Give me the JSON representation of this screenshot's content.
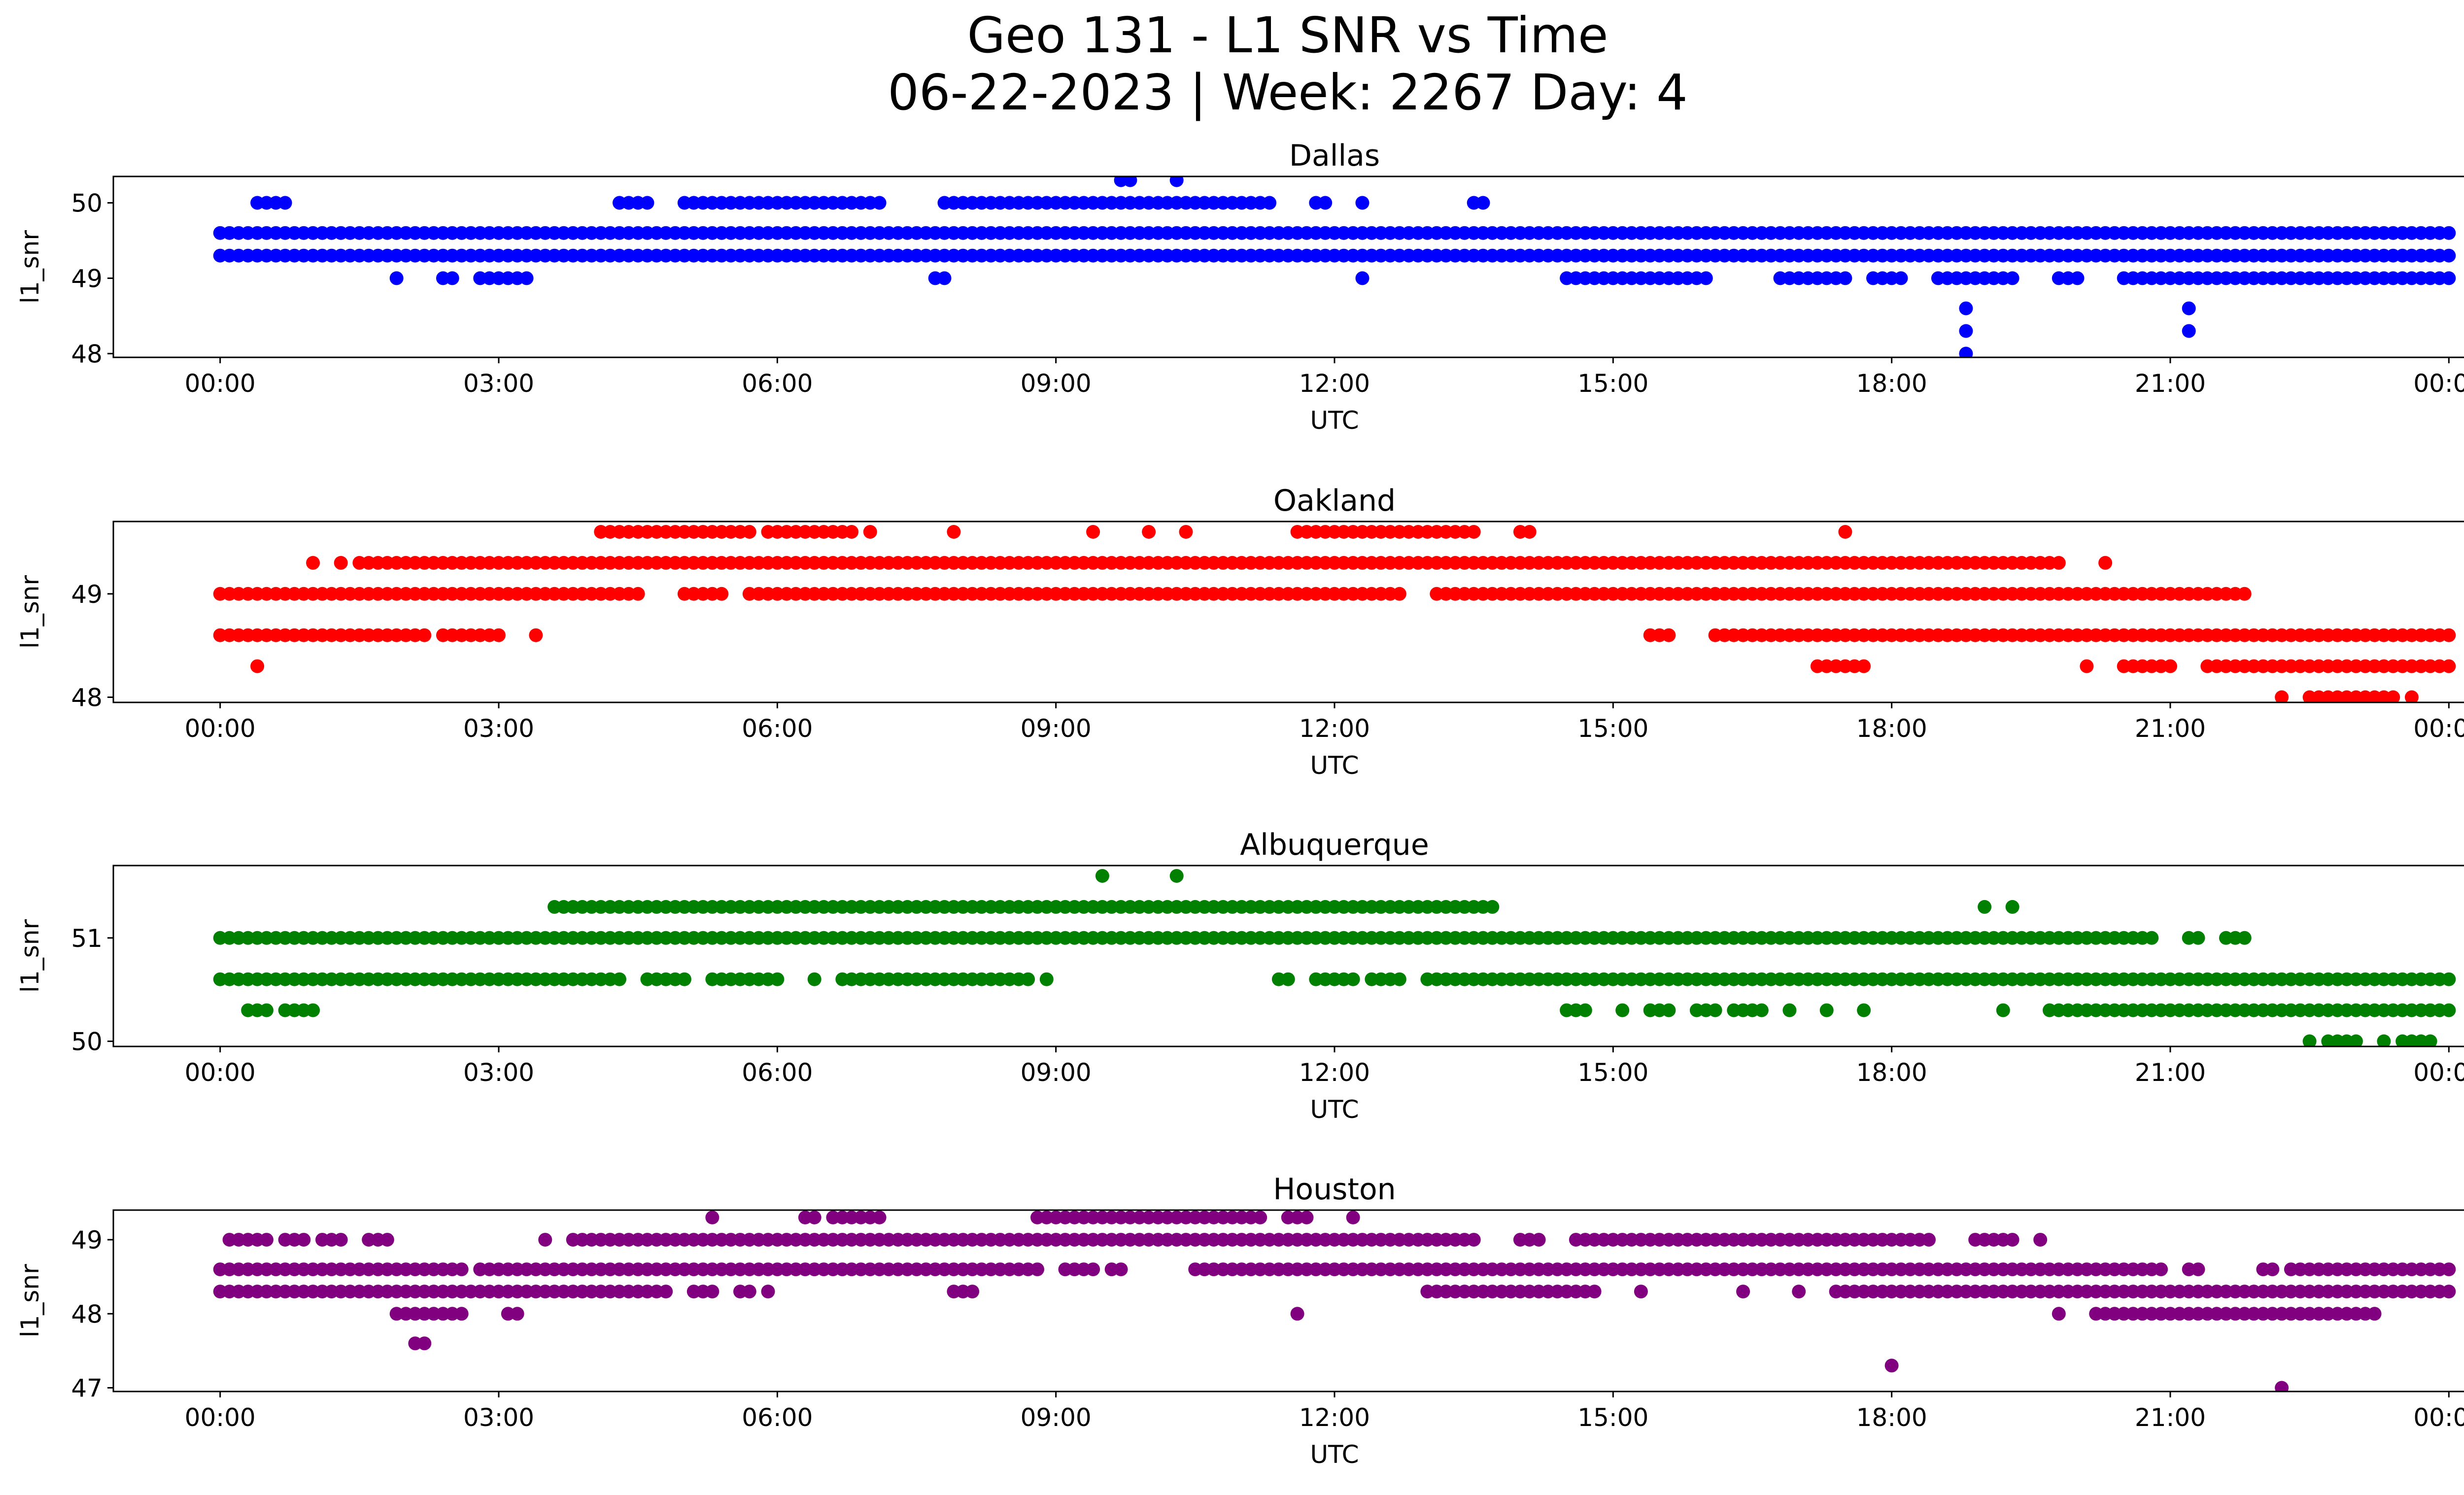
{
  "figure": {
    "title_line1": "Geo 131 - L1 SNR vs Time",
    "title_line2": "06-22-2023 | Week: 2267 Day: 4"
  },
  "chart_data": [
    {
      "type": "scatter",
      "title": "Dallas",
      "xlabel": "UTC",
      "ylabel": "l1_snr",
      "color": "#0000ff",
      "x_ticks": [
        "00:00",
        "03:00",
        "06:00",
        "09:00",
        "12:00",
        "15:00",
        "18:00",
        "21:00",
        "00:00"
      ],
      "y_ticks": [
        48,
        49,
        50
      ],
      "xlim_hours": [
        -1.15,
        25.15
      ],
      "ylim": [
        47.95,
        50.35
      ],
      "points": {
        "segments": [
          [
            49.3,
            [
              [
                0.0,
                24.0
              ]
            ]
          ],
          [
            49.6,
            [
              [
                0.0,
                24.0
              ]
            ]
          ],
          [
            50.0,
            [
              [
                0.4,
                0.7
              ],
              [
                4.3,
                4.6
              ],
              [
                5.0,
                7.1
              ],
              [
                7.8,
                11.3
              ],
              [
                11.8,
                11.9
              ],
              [
                12.3,
                12.3
              ],
              [
                13.5,
                13.6
              ]
            ]
          ],
          [
            49.0,
            [
              [
                1.9,
                1.9
              ],
              [
                2.4,
                2.5
              ],
              [
                2.8,
                3.3
              ],
              [
                7.7,
                7.8
              ],
              [
                12.3,
                12.3
              ],
              [
                14.5,
                16.0
              ],
              [
                16.8,
                17.5
              ],
              [
                17.8,
                18.1
              ],
              [
                18.5,
                19.3
              ],
              [
                19.8,
                20.0
              ],
              [
                20.5,
                24.0
              ]
            ]
          ],
          [
            50.3,
            [
              [
                9.7,
                9.8
              ],
              [
                10.3,
                10.3
              ]
            ]
          ],
          [
            48.6,
            [
              [
                18.8,
                18.8
              ],
              [
                21.2,
                21.2
              ]
            ]
          ],
          [
            48.3,
            [
              [
                18.8,
                18.8
              ],
              [
                21.2,
                21.2
              ]
            ]
          ],
          [
            48.0,
            [
              [
                18.8,
                18.8
              ]
            ]
          ]
        ]
      }
    },
    {
      "type": "scatter",
      "title": "Oakland",
      "xlabel": "UTC",
      "ylabel": "l1_snr",
      "color": "#ff0000",
      "x_ticks": [
        "00:00",
        "03:00",
        "06:00",
        "09:00",
        "12:00",
        "15:00",
        "18:00",
        "21:00",
        "00:00"
      ],
      "y_ticks": [
        48,
        49
      ],
      "xlim_hours": [
        -1.15,
        25.15
      ],
      "ylim": [
        47.95,
        49.7
      ],
      "points": {
        "segments": [
          [
            49.0,
            [
              [
                0.0,
                4.5
              ],
              [
                5.0,
                5.4
              ],
              [
                5.7,
                12.7
              ],
              [
                13.1,
                21.5
              ],
              [
                21.6,
                21.8
              ]
            ]
          ],
          [
            48.6,
            [
              [
                0.0,
                2.2
              ],
              [
                2.4,
                3.0
              ],
              [
                3.4,
                3.4
              ],
              [
                15.4,
                15.6
              ],
              [
                16.1,
                24.0
              ]
            ]
          ],
          [
            48.3,
            [
              [
                0.4,
                0.4
              ],
              [
                17.2,
                17.7
              ],
              [
                20.1,
                20.1
              ],
              [
                20.5,
                21.0
              ],
              [
                21.4,
                24.0
              ]
            ]
          ],
          [
            49.3,
            [
              [
                1.0,
                1.0
              ],
              [
                1.3,
                1.3
              ],
              [
                1.5,
                19.8
              ],
              [
                20.3,
                20.3
              ]
            ]
          ],
          [
            49.6,
            [
              [
                4.1,
                5.7
              ],
              [
                5.9,
                6.8
              ],
              [
                7.0,
                7.0
              ],
              [
                7.9,
                7.9
              ],
              [
                9.4,
                9.4
              ],
              [
                10.0,
                10.0
              ],
              [
                10.4,
                10.4
              ],
              [
                11.6,
                12.3
              ],
              [
                12.4,
                13.5
              ],
              [
                14.0,
                14.1
              ],
              [
                17.5,
                17.5
              ]
            ]
          ],
          [
            48.0,
            [
              [
                22.2,
                22.2
              ],
              [
                22.5,
                23.4
              ],
              [
                23.6,
                23.6
              ]
            ]
          ]
        ]
      }
    },
    {
      "type": "scatter",
      "title": "Albuquerque",
      "xlabel": "UTC",
      "ylabel": "l1_snr",
      "color": "#008000",
      "x_ticks": [
        "00:00",
        "03:00",
        "06:00",
        "09:00",
        "12:00",
        "15:00",
        "18:00",
        "21:00",
        "00:00"
      ],
      "y_ticks": [
        50,
        51
      ],
      "xlim_hours": [
        -1.15,
        25.15
      ],
      "ylim": [
        49.95,
        51.7
      ],
      "points": {
        "segments": [
          [
            51.0,
            [
              [
                0.0,
                20.8
              ],
              [
                21.2,
                21.3
              ],
              [
                21.6,
                21.8
              ]
            ]
          ],
          [
            50.6,
            [
              [
                0.0,
                4.3
              ],
              [
                4.6,
                5.0
              ],
              [
                5.3,
                6.0
              ],
              [
                6.4,
                6.4
              ],
              [
                6.7,
                8.7
              ],
              [
                8.9,
                8.9
              ],
              [
                11.4,
                11.5
              ],
              [
                11.8,
                12.2
              ],
              [
                12.4,
                12.7
              ],
              [
                13.0,
                24.0
              ]
            ]
          ],
          [
            50.3,
            [
              [
                0.3,
                0.5
              ],
              [
                0.7,
                1.0
              ],
              [
                14.5,
                14.7
              ],
              [
                15.1,
                15.1
              ],
              [
                15.4,
                15.6
              ],
              [
                15.9,
                16.1
              ],
              [
                16.3,
                16.6
              ],
              [
                16.9,
                16.9
              ],
              [
                17.3,
                17.3
              ],
              [
                17.7,
                17.7
              ],
              [
                19.2,
                19.2
              ],
              [
                19.7,
                24.0
              ]
            ]
          ],
          [
            51.3,
            [
              [
                3.6,
                13.7
              ],
              [
                19.0,
                19.0
              ],
              [
                19.3,
                19.3
              ]
            ]
          ],
          [
            51.6,
            [
              [
                9.5,
                9.5
              ],
              [
                10.3,
                10.3
              ]
            ]
          ],
          [
            50.0,
            [
              [
                22.5,
                22.5
              ],
              [
                22.7,
                23.0
              ],
              [
                23.3,
                23.3
              ],
              [
                23.5,
                23.8
              ]
            ]
          ]
        ]
      }
    },
    {
      "type": "scatter",
      "title": "Houston",
      "xlabel": "UTC",
      "ylabel": "l1_snr",
      "color": "#800080",
      "x_ticks": [
        "00:00",
        "03:00",
        "06:00",
        "09:00",
        "12:00",
        "15:00",
        "18:00",
        "21:00",
        "00:00"
      ],
      "y_ticks": [
        47,
        48,
        49
      ],
      "xlim_hours": [
        -1.15,
        25.15
      ],
      "ylim": [
        46.95,
        49.4
      ],
      "points": {
        "segments": [
          [
            48.6,
            [
              [
                0.0,
                2.2
              ],
              [
                2.3,
                2.6
              ],
              [
                2.8,
                8.8
              ],
              [
                9.1,
                9.4
              ],
              [
                9.6,
                9.7
              ],
              [
                10.5,
                11.0
              ],
              [
                11.1,
                20.7
              ],
              [
                20.8,
                20.9
              ],
              [
                21.2,
                21.3
              ],
              [
                22.0,
                22.1
              ],
              [
                22.3,
                24.0
              ]
            ]
          ],
          [
            48.3,
            [
              [
                0.0,
                4.8
              ],
              [
                5.1,
                5.3
              ],
              [
                5.6,
                5.7
              ],
              [
                5.9,
                5.9
              ],
              [
                7.9,
                8.1
              ],
              [
                13.0,
                14.8
              ],
              [
                15.3,
                15.3
              ],
              [
                16.4,
                16.4
              ],
              [
                17.0,
                17.0
              ],
              [
                17.4,
                24.0
              ]
            ]
          ],
          [
            49.0,
            [
              [
                0.1,
                0.2
              ],
              [
                0.3,
                0.5
              ],
              [
                0.7,
                0.9
              ],
              [
                1.1,
                1.3
              ],
              [
                1.6,
                1.8
              ],
              [
                3.5,
                3.5
              ],
              [
                3.8,
                4.5
              ],
              [
                4.6,
                13.5
              ],
              [
                14.0,
                14.2
              ],
              [
                14.6,
                18.1
              ],
              [
                18.2,
                18.4
              ],
              [
                18.9,
                19.3
              ],
              [
                19.6,
                19.6
              ]
            ]
          ],
          [
            48.0,
            [
              [
                1.9,
                2.6
              ],
              [
                3.1,
                3.2
              ],
              [
                11.6,
                11.6
              ],
              [
                19.8,
                19.8
              ],
              [
                20.2,
                23.2
              ]
            ]
          ],
          [
            47.6,
            [
              [
                2.1,
                2.2
              ]
            ]
          ],
          [
            49.3,
            [
              [
                5.3,
                5.3
              ],
              [
                6.3,
                6.4
              ],
              [
                6.6,
                7.1
              ],
              [
                8.8,
                11.2
              ],
              [
                11.5,
                11.7
              ],
              [
                12.2,
                12.2
              ]
            ]
          ],
          [
            47.3,
            [
              [
                18.0,
                18.0
              ]
            ]
          ],
          [
            47.0,
            [
              [
                22.2,
                22.2
              ]
            ]
          ]
        ]
      }
    }
  ]
}
